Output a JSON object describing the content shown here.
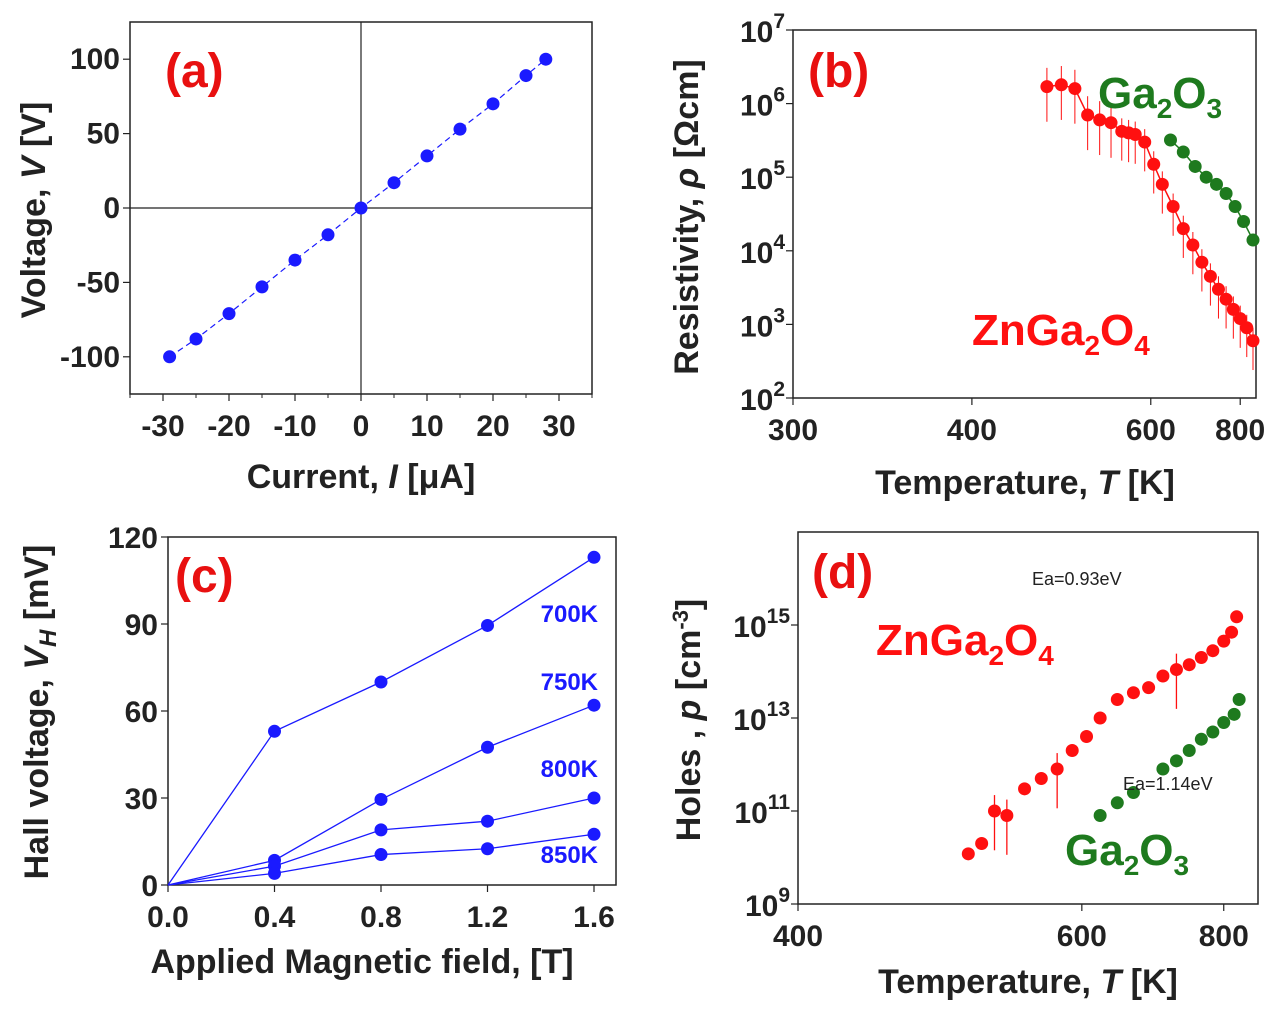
{
  "chart_data": [
    {
      "panel": "(a)",
      "type": "scatter",
      "xlabel": "Current, I [μA]",
      "ylabel": "Voltage, V [V]",
      "xlim": [
        -35,
        35
      ],
      "ylim": [
        -125,
        125
      ],
      "xticks": [
        "-30",
        "-20",
        "-10",
        "0",
        "10",
        "20",
        "30"
      ],
      "yticks": [
        "-100",
        "-50",
        "0",
        "50",
        "100"
      ],
      "grid": false,
      "series": [
        {
          "color": "#1a1aff",
          "x": [
            -29,
            -25,
            -20,
            -15,
            -10,
            -5,
            0,
            5,
            10,
            15,
            20,
            25,
            28
          ],
          "y": [
            -100,
            -88,
            -71,
            -53,
            -35,
            -18,
            0,
            17,
            35,
            53,
            70,
            89,
            100
          ]
        }
      ]
    },
    {
      "panel": "(b)",
      "type": "scatter",
      "xlabel": "Temperature, T [K]",
      "ylabel": "Resistivity, ρ [Ωcm]",
      "xscale": "reciprocal",
      "yscale": "log",
      "xlim": [
        300,
        850
      ],
      "ylim": [
        100,
        10000000
      ],
      "xticks": [
        "300",
        "400",
        "600",
        "800"
      ],
      "yticks": [
        "10^2",
        "10^3",
        "10^4",
        "10^5",
        "10^6",
        "10^7"
      ],
      "series": [
        {
          "name": "ZnGa2O4",
          "color": "#ff1010",
          "x": [
            465,
            480,
            495,
            510,
            525,
            540,
            555,
            565,
            575,
            590,
            605,
            620,
            640,
            660,
            680,
            700,
            720,
            740,
            760,
            780,
            800,
            820,
            840
          ],
          "y": [
            1700000,
            1800000,
            1600000,
            700000,
            600000,
            550000,
            420000,
            400000,
            380000,
            300000,
            150000,
            80000,
            40000,
            20000,
            12000,
            7000,
            4500,
            3000,
            2200,
            1600,
            1200,
            900,
            600
          ]
        },
        {
          "name": "Ga2O3",
          "color": "#1e7a1e",
          "x": [
            635,
            660,
            685,
            710,
            735,
            760,
            785,
            810,
            840
          ],
          "y": [
            320000,
            220000,
            140000,
            100000,
            80000,
            60000,
            40000,
            25000,
            14000
          ]
        }
      ],
      "annotations": [
        "Ga2O3",
        "ZnGa2O4"
      ]
    },
    {
      "panel": "(c)",
      "type": "line",
      "xlabel": "Applied Magnetic field, [T]",
      "ylabel": "Hall voltage, V_H [mV]",
      "xlim": [
        0,
        1.6
      ],
      "ylim": [
        0,
        120
      ],
      "xticks": [
        "0.0",
        "0.4",
        "0.8",
        "1.2",
        "1.6"
      ],
      "yticks": [
        "0",
        "30",
        "60",
        "90",
        "120"
      ],
      "x": [
        0,
        0.4,
        0.8,
        1.2,
        1.6
      ],
      "series": [
        {
          "name": "700K",
          "color": "#1a1aff",
          "values": [
            0,
            53,
            70,
            89.5,
            113
          ]
        },
        {
          "name": "750K",
          "color": "#1a1aff",
          "values": [
            0,
            8.5,
            29.5,
            47.5,
            62
          ]
        },
        {
          "name": "800K",
          "color": "#1a1aff",
          "values": [
            0,
            6.5,
            19,
            22,
            30
          ]
        },
        {
          "name": "850K",
          "color": "#1a1aff",
          "values": [
            0,
            4,
            10.5,
            12.5,
            17.5
          ]
        }
      ]
    },
    {
      "panel": "(d)",
      "type": "scatter",
      "xlabel": "Temperature, T [K]",
      "ylabel": "Holes , p [cm-3]",
      "xscale": "reciprocal",
      "yscale": "log",
      "xlim": [
        400,
        870
      ],
      "ylim": [
        1000000000,
        100000000000000000
      ],
      "xticks": [
        "400",
        "600",
        "800"
      ],
      "yticks": [
        "10^9",
        "10^11",
        "10^13",
        "10^15"
      ],
      "series": [
        {
          "name": "ZnGa2O4",
          "color": "#ff1010",
          "x": [
            500,
            510,
            520,
            530,
            545,
            560,
            575,
            590,
            605,
            620,
            640,
            660,
            680,
            700,
            720,
            740,
            760,
            780,
            800,
            815,
            825
          ],
          "y": [
            12000000000,
            20000000000,
            100000000000,
            80000000000,
            300000000000,
            500000000000,
            800000000000,
            2000000000000,
            4000000000000,
            10000000000000,
            25000000000000,
            35000000000000,
            45000000000000,
            80000000000000,
            110000000000000,
            140000000000000,
            200000000000000,
            280000000000000,
            450000000000000,
            700000000000000,
            1500000000000000
          ]
        },
        {
          "name": "Ga2O3",
          "color": "#1e7a1e",
          "x": [
            620,
            640,
            660,
            700,
            720,
            740,
            760,
            780,
            800,
            820,
            830
          ],
          "y": [
            80000000000,
            150000000000,
            250000000000,
            800000000000,
            1200000000000,
            2000000000000,
            3500000000000,
            5000000000000,
            8000000000000,
            12000000000000,
            25000000000000
          ]
        }
      ],
      "annotations": [
        "ZnGa2O4",
        "Ga2O3",
        "Ea=0.93eV",
        "Ea=1.14eV"
      ]
    }
  ],
  "labels": {
    "a": {
      "tag": "(a)",
      "xlabel_pre": "Current, ",
      "xlabel_var": "I",
      "xlabel_post": " [μA]",
      "ylabel_pre": "Voltage, ",
      "ylabel_var": "V",
      "ylabel_post": " [V]"
    },
    "b": {
      "tag": "(b)",
      "xlabel_pre": "Temperature, ",
      "xlabel_var": "T",
      "xlabel_post": " [K]",
      "ylabel_pre": "Resistivity, ",
      "ylabel_var": "ρ",
      "ylabel_post": " [Ωcm]",
      "ga_main": "Ga",
      "ga_sub1": "2",
      "ga_o": "O",
      "ga_sub2": "3",
      "zn_main": "ZnGa",
      "zn_sub1": "2",
      "zn_o": "O",
      "zn_sub2": "4"
    },
    "c": {
      "tag": "(c)",
      "xlabel": "Applied Magnetic field, [T]",
      "ylabel_pre": "Hall voltage, ",
      "ylabel_var": "V",
      "ylabel_sub": "H",
      "ylabel_post": " [mV]"
    },
    "d": {
      "tag": "(d)",
      "xlabel_pre": "Temperature, ",
      "xlabel_var": "T",
      "xlabel_post": " [K]",
      "ylabel_pre": "Holes , ",
      "ylabel_var": "p",
      "ylabel_post": " [cm",
      "ylabel_sup": "-3",
      "ylabel_end": "]",
      "ea1": "Ea=0.93eV",
      "ea2": "Ea=1.14eV",
      "zn_main": "ZnGa",
      "zn_sub1": "2",
      "zn_o": "O",
      "zn_sub2": "4",
      "ga_main": "Ga",
      "ga_sub1": "2",
      "ga_o": "O",
      "ga_sub2": "3"
    }
  }
}
